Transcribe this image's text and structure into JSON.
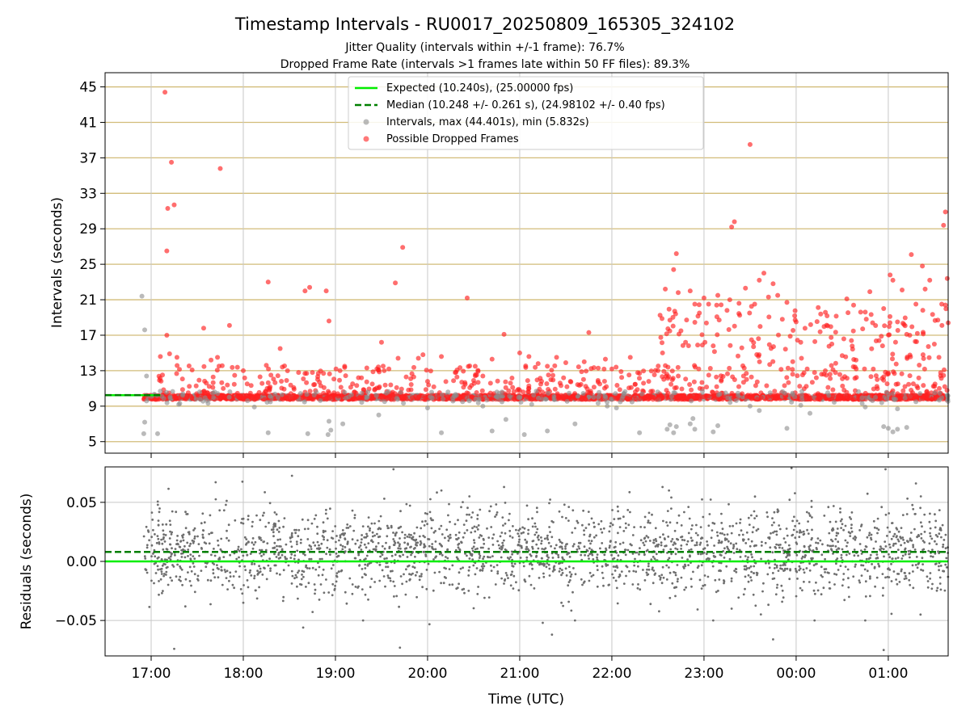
{
  "figure": {
    "title": "Timestamp Intervals - RU0017_20250809_165305_324102",
    "subtitle_1": "Jitter Quality (intervals within +/-1 frame): 76.7%",
    "subtitle_2": "Dropped Frame Rate (intervals >1 frames late within 50 FF files): 89.3%",
    "xlabel": "Time (UTC)"
  },
  "colors": {
    "expected": "#00ee00",
    "median": "#007f00",
    "intervals": "#8c8c8c",
    "dropped": "#ff2020",
    "residuals": "#6e6e6e",
    "top_grid": "#d2bc79",
    "bottom_grid": "#c8c8c8"
  },
  "chart_data": [
    {
      "type": "scatter",
      "name": "top-panel",
      "ylabel": "Intervals (seconds)",
      "ylim": [
        3.7,
        46.6
      ],
      "yticks": [
        5,
        9,
        13,
        17,
        21,
        25,
        29,
        33,
        37,
        41,
        45
      ],
      "xlim_hours": [
        16.5,
        25.65
      ],
      "xticks": [
        {
          "value": 17,
          "label": "17:00"
        },
        {
          "value": 18,
          "label": "18:00"
        },
        {
          "value": 19,
          "label": "19:00"
        },
        {
          "value": 20,
          "label": "20:00"
        },
        {
          "value": 21,
          "label": "21:00"
        },
        {
          "value": 22,
          "label": "22:00"
        },
        {
          "value": 23,
          "label": "23:00"
        },
        {
          "value": 24,
          "label": "00:00"
        },
        {
          "value": 25,
          "label": "01:00"
        }
      ],
      "grid": {
        "horizontal": true,
        "vertical": true
      },
      "legend": {
        "placement": "top-center",
        "entries": [
          {
            "key": "expected",
            "label": "Expected (10.240s), (25.00000 fps)"
          },
          {
            "key": "median",
            "label": "Median (10.248 +/- 0.261 s), (24.98102 +/- 0.40 fps)"
          },
          {
            "key": "intervals",
            "label": "Intervals, max (44.401s), min (5.832s)"
          },
          {
            "key": "dropped",
            "label": "Possible Dropped Frames"
          }
        ]
      },
      "expected_value": 10.24,
      "median_value": 10.248,
      "expected_x_range": [
        16.5,
        17.1
      ],
      "x_start": 16.92,
      "x_end": 25.65,
      "baseline_value": 10.0,
      "dropped_highlights": [
        [
          17.15,
          44.4
        ],
        [
          17.22,
          36.5
        ],
        [
          17.18,
          31.3
        ],
        [
          17.25,
          31.7
        ],
        [
          17.17,
          26.5
        ],
        [
          17.1,
          14.6
        ],
        [
          17.17,
          17.0
        ],
        [
          17.2,
          14.9
        ],
        [
          17.28,
          14.5
        ],
        [
          17.57,
          17.8
        ],
        [
          17.65,
          14.2
        ],
        [
          17.72,
          14.5
        ],
        [
          17.75,
          35.8
        ],
        [
          17.85,
          18.1
        ],
        [
          18.0,
          13.0
        ],
        [
          18.27,
          23.0
        ],
        [
          18.4,
          15.5
        ],
        [
          18.25,
          13.6
        ],
        [
          18.3,
          12.5
        ],
        [
          18.47,
          11.9
        ],
        [
          18.6,
          12.8
        ],
        [
          18.67,
          22.0
        ],
        [
          18.72,
          22.4
        ],
        [
          18.75,
          12.8
        ],
        [
          18.9,
          22.0
        ],
        [
          18.93,
          18.6
        ],
        [
          19.05,
          13.0
        ],
        [
          19.1,
          13.5
        ],
        [
          19.25,
          12.2
        ],
        [
          19.4,
          11.5
        ],
        [
          19.45,
          13.2
        ],
        [
          19.5,
          16.2
        ],
        [
          19.6,
          11.4
        ],
        [
          19.65,
          22.9
        ],
        [
          19.68,
          14.4
        ],
        [
          19.73,
          26.9
        ],
        [
          19.85,
          12.3
        ],
        [
          19.9,
          14.4
        ],
        [
          19.95,
          14.8
        ],
        [
          20.0,
          11.8
        ],
        [
          20.15,
          14.6
        ],
        [
          20.3,
          12.8
        ],
        [
          20.43,
          21.2
        ],
        [
          20.5,
          11.9
        ],
        [
          20.6,
          12.4
        ],
        [
          20.7,
          14.3
        ],
        [
          20.83,
          17.1
        ],
        [
          20.9,
          11.6
        ],
        [
          21.0,
          15.0
        ],
        [
          21.1,
          14.6
        ],
        [
          21.2,
          13.8
        ],
        [
          21.3,
          13.5
        ],
        [
          21.4,
          14.5
        ],
        [
          21.5,
          13.9
        ],
        [
          21.55,
          11.8
        ],
        [
          21.7,
          14.0
        ],
        [
          21.75,
          17.3
        ],
        [
          21.85,
          11.9
        ],
        [
          21.93,
          14.3
        ],
        [
          22.0,
          13.2
        ],
        [
          22.1,
          12.9
        ],
        [
          22.2,
          14.5
        ],
        [
          22.3,
          12.7
        ],
        [
          22.4,
          11.8
        ],
        [
          22.5,
          13.0
        ],
        [
          22.55,
          15.0
        ],
        [
          22.58,
          22.2
        ],
        [
          22.63,
          18.7
        ],
        [
          22.67,
          24.4
        ],
        [
          22.7,
          26.2
        ],
        [
          22.72,
          21.8
        ],
        [
          22.75,
          17.5
        ],
        [
          22.8,
          16.2
        ],
        [
          22.85,
          22.0
        ],
        [
          22.9,
          20.5
        ],
        [
          22.95,
          19.5
        ],
        [
          23.0,
          21.2
        ],
        [
          23.05,
          20.5
        ],
        [
          23.1,
          15.8
        ],
        [
          23.15,
          21.5
        ],
        [
          23.25,
          19.8
        ],
        [
          23.3,
          29.2
        ],
        [
          23.33,
          29.8
        ],
        [
          23.28,
          21.0
        ],
        [
          23.38,
          20.6
        ],
        [
          23.45,
          22.3
        ],
        [
          23.5,
          38.5
        ],
        [
          23.55,
          20.5
        ],
        [
          23.6,
          23.2
        ],
        [
          23.65,
          24.0
        ],
        [
          23.7,
          21.3
        ],
        [
          23.75,
          22.8
        ],
        [
          23.8,
          21.5
        ],
        [
          23.85,
          18.8
        ],
        [
          23.9,
          20.7
        ],
        [
          24.0,
          18.5
        ],
        [
          24.05,
          16.2
        ],
        [
          24.12,
          13.2
        ],
        [
          24.2,
          12.8
        ],
        [
          24.3,
          12.6
        ],
        [
          24.4,
          13.1
        ],
        [
          24.5,
          14.7
        ],
        [
          24.55,
          21.1
        ],
        [
          24.6,
          16.4
        ],
        [
          24.65,
          14.2
        ],
        [
          24.7,
          19.6
        ],
        [
          24.75,
          19.6
        ],
        [
          24.8,
          21.9
        ],
        [
          24.83,
          18.4
        ],
        [
          24.9,
          16.4
        ],
        [
          24.95,
          20.0
        ],
        [
          25.02,
          23.8
        ],
        [
          25.05,
          23.2
        ],
        [
          25.1,
          18.5
        ],
        [
          25.15,
          22.1
        ],
        [
          25.2,
          17.1
        ],
        [
          25.25,
          26.1
        ],
        [
          25.3,
          20.5
        ],
        [
          25.37,
          24.8
        ],
        [
          25.4,
          22.2
        ],
        [
          25.45,
          23.2
        ],
        [
          25.5,
          16.0
        ],
        [
          25.55,
          14.5
        ],
        [
          25.58,
          20.5
        ],
        [
          25.62,
          30.9
        ],
        [
          25.6,
          29.4
        ],
        [
          25.64,
          23.4
        ],
        [
          25.65,
          18.4
        ],
        [
          25.62,
          20.4
        ]
      ],
      "gray_outliers": [
        [
          16.9,
          21.4
        ],
        [
          16.93,
          17.6
        ],
        [
          16.95,
          12.4
        ],
        [
          16.93,
          7.2
        ],
        [
          16.92,
          5.9
        ],
        [
          17.07,
          5.9
        ],
        [
          17.3,
          9.2
        ],
        [
          18.12,
          8.9
        ],
        [
          18.27,
          6.0
        ],
        [
          18.7,
          5.9
        ],
        [
          18.93,
          7.3
        ],
        [
          18.92,
          5.8
        ],
        [
          18.95,
          6.3
        ],
        [
          19.08,
          7.0
        ],
        [
          19.47,
          8.0
        ],
        [
          20.0,
          8.8
        ],
        [
          20.15,
          6.0
        ],
        [
          20.6,
          9.0
        ],
        [
          20.7,
          6.2
        ],
        [
          20.85,
          7.5
        ],
        [
          21.05,
          5.8
        ],
        [
          21.13,
          9.2
        ],
        [
          21.3,
          6.2
        ],
        [
          21.6,
          7.0
        ],
        [
          21.95,
          9.0
        ],
        [
          22.05,
          8.8
        ],
        [
          22.3,
          6.0
        ],
        [
          22.6,
          6.4
        ],
        [
          22.63,
          6.9
        ],
        [
          22.67,
          6.0
        ],
        [
          22.7,
          6.7
        ],
        [
          22.85,
          7.0
        ],
        [
          22.9,
          6.4
        ],
        [
          22.88,
          7.6
        ],
        [
          23.1,
          6.1
        ],
        [
          23.15,
          6.8
        ],
        [
          23.5,
          9.0
        ],
        [
          23.6,
          8.5
        ],
        [
          23.9,
          6.5
        ],
        [
          24.05,
          9.1
        ],
        [
          24.15,
          8.2
        ],
        [
          24.75,
          8.9
        ],
        [
          24.95,
          6.7
        ],
        [
          25.0,
          6.5
        ],
        [
          25.05,
          6.1
        ],
        [
          25.1,
          6.4
        ],
        [
          25.2,
          6.6
        ],
        [
          25.1,
          8.7
        ],
        [
          25.3,
          9.5
        ]
      ]
    },
    {
      "type": "scatter",
      "name": "bottom-panel",
      "ylabel": "Residuals (seconds)",
      "ylim": [
        -0.08,
        0.08
      ],
      "yticks": [
        {
          "value": 0.05,
          "label": "0.05"
        },
        {
          "value": 0.0,
          "label": "0.00"
        },
        {
          "value": -0.05,
          "label": "−0.05"
        }
      ],
      "xlim_hours": [
        16.5,
        25.65
      ],
      "grid": {
        "horizontal": true,
        "vertical": true
      },
      "expected_value": 0.0,
      "median_value": 0.008,
      "x_start": 16.92,
      "x_end": 25.65,
      "spread": 0.018,
      "outliers": [
        [
          17.25,
          -0.074
        ],
        [
          17.7,
          0.067
        ],
        [
          18.0,
          -0.035
        ],
        [
          18.65,
          -0.056
        ],
        [
          19.3,
          -0.05
        ],
        [
          19.7,
          -0.073
        ],
        [
          19.63,
          0.078
        ],
        [
          20.15,
          0.06
        ],
        [
          20.83,
          0.063
        ],
        [
          21.25,
          -0.052
        ],
        [
          21.35,
          -0.062
        ],
        [
          21.6,
          -0.05
        ],
        [
          22.55,
          0.063
        ],
        [
          22.62,
          0.06
        ],
        [
          23.1,
          -0.05
        ],
        [
          23.3,
          -0.04
        ],
        [
          23.75,
          -0.066
        ],
        [
          23.95,
          0.079
        ],
        [
          24.2,
          -0.05
        ],
        [
          24.75,
          -0.05
        ],
        [
          24.95,
          -0.075
        ],
        [
          24.97,
          0.078
        ],
        [
          25.3,
          0.066
        ],
        [
          25.35,
          -0.045
        ]
      ]
    }
  ]
}
